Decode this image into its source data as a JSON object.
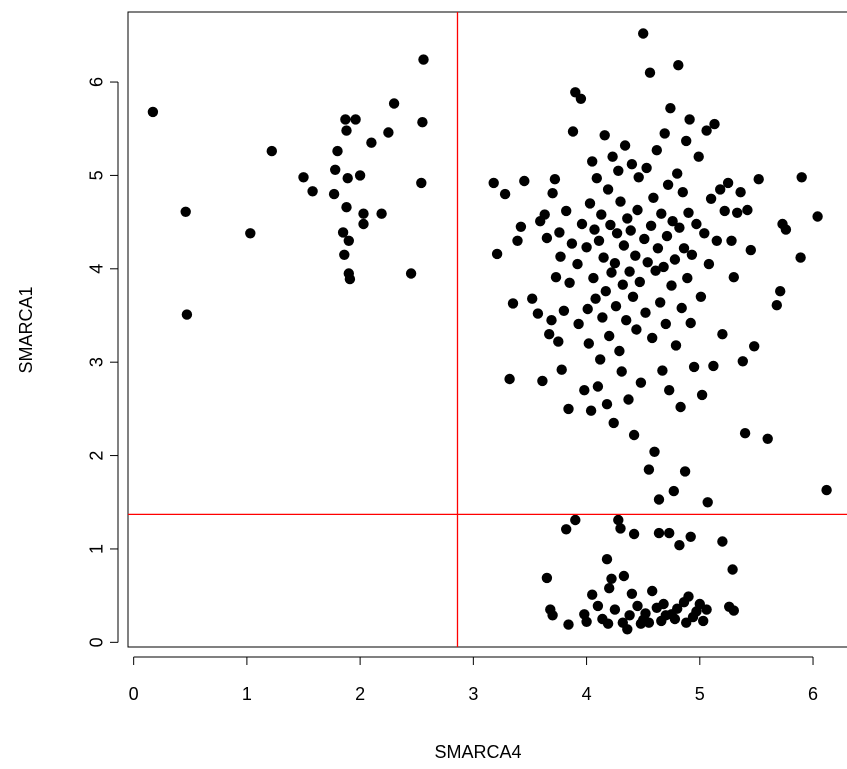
{
  "chart_data": {
    "type": "scatter",
    "xlabel": "SMARCA4",
    "ylabel": "SMARCA1",
    "xlim": [
      -0.05,
      6.3
    ],
    "ylim": [
      -0.05,
      6.75
    ],
    "x_ticks": [
      0,
      1,
      2,
      3,
      4,
      5,
      6
    ],
    "y_ticks": [
      0,
      1,
      2,
      3,
      4,
      5,
      6
    ],
    "grid": false,
    "point_color": "#000000",
    "reference_lines": {
      "vertical_x": 2.86,
      "horizontal_y": 1.37,
      "color": "#ff0000"
    },
    "points": [
      [
        0.17,
        5.68
      ],
      [
        0.46,
        4.61
      ],
      [
        0.47,
        3.51
      ],
      [
        1.03,
        4.38
      ],
      [
        1.22,
        5.26
      ],
      [
        1.5,
        4.98
      ],
      [
        1.58,
        4.83
      ],
      [
        1.77,
        4.8
      ],
      [
        1.78,
        5.06
      ],
      [
        1.8,
        5.26
      ],
      [
        1.85,
        4.39
      ],
      [
        1.86,
        4.15
      ],
      [
        1.87,
        5.6
      ],
      [
        1.88,
        5.48
      ],
      [
        1.88,
        4.66
      ],
      [
        1.89,
        4.97
      ],
      [
        1.9,
        3.95
      ],
      [
        1.9,
        4.3
      ],
      [
        1.91,
        3.89
      ],
      [
        1.96,
        5.6
      ],
      [
        2.0,
        5.0
      ],
      [
        2.03,
        4.48
      ],
      [
        2.03,
        4.59
      ],
      [
        2.1,
        5.35
      ],
      [
        2.19,
        4.59
      ],
      [
        2.25,
        5.46
      ],
      [
        2.3,
        5.77
      ],
      [
        2.45,
        3.95
      ],
      [
        2.54,
        4.92
      ],
      [
        2.55,
        5.57
      ],
      [
        2.56,
        6.24
      ],
      [
        3.18,
        4.92
      ],
      [
        3.21,
        4.16
      ],
      [
        3.28,
        4.8
      ],
      [
        3.32,
        2.82
      ],
      [
        3.35,
        3.63
      ],
      [
        3.39,
        4.3
      ],
      [
        3.42,
        4.45
      ],
      [
        3.45,
        4.94
      ],
      [
        3.52,
        3.68
      ],
      [
        3.57,
        3.52
      ],
      [
        3.59,
        4.51
      ],
      [
        3.61,
        2.8
      ],
      [
        3.63,
        4.58
      ],
      [
        3.65,
        4.33
      ],
      [
        3.67,
        3.3
      ],
      [
        3.69,
        3.45
      ],
      [
        3.7,
        4.81
      ],
      [
        3.72,
        4.96
      ],
      [
        3.73,
        3.91
      ],
      [
        3.75,
        3.22
      ],
      [
        3.76,
        4.39
      ],
      [
        3.77,
        4.13
      ],
      [
        3.78,
        2.92
      ],
      [
        3.8,
        3.55
      ],
      [
        3.82,
        4.62
      ],
      [
        3.84,
        2.5
      ],
      [
        3.85,
        3.85
      ],
      [
        3.87,
        4.27
      ],
      [
        3.88,
        5.47
      ],
      [
        3.9,
        5.89
      ],
      [
        3.92,
        4.05
      ],
      [
        3.93,
        3.41
      ],
      [
        3.95,
        5.82
      ],
      [
        3.96,
        4.48
      ],
      [
        3.98,
        2.7
      ],
      [
        4.0,
        4.23
      ],
      [
        4.01,
        3.57
      ],
      [
        4.02,
        3.2
      ],
      [
        4.03,
        4.7
      ],
      [
        4.04,
        2.48
      ],
      [
        4.05,
        5.15
      ],
      [
        4.06,
        3.9
      ],
      [
        4.07,
        4.42
      ],
      [
        4.08,
        3.68
      ],
      [
        4.09,
        4.97
      ],
      [
        4.1,
        2.74
      ],
      [
        4.11,
        4.3
      ],
      [
        4.12,
        3.03
      ],
      [
        4.13,
        4.58
      ],
      [
        4.14,
        3.48
      ],
      [
        4.15,
        4.12
      ],
      [
        4.16,
        5.43
      ],
      [
        4.17,
        3.76
      ],
      [
        4.18,
        2.55
      ],
      [
        4.19,
        4.85
      ],
      [
        4.2,
        3.28
      ],
      [
        4.21,
        4.47
      ],
      [
        4.22,
        3.96
      ],
      [
        4.23,
        5.2
      ],
      [
        4.24,
        2.35
      ],
      [
        4.25,
        4.06
      ],
      [
        4.26,
        3.6
      ],
      [
        4.27,
        4.38
      ],
      [
        4.28,
        5.05
      ],
      [
        4.29,
        3.12
      ],
      [
        4.3,
        4.72
      ],
      [
        4.31,
        2.9
      ],
      [
        4.32,
        3.83
      ],
      [
        4.33,
        4.25
      ],
      [
        4.34,
        5.32
      ],
      [
        4.35,
        3.45
      ],
      [
        4.36,
        4.54
      ],
      [
        4.37,
        2.6
      ],
      [
        4.38,
        3.97
      ],
      [
        4.39,
        4.41
      ],
      [
        4.4,
        5.12
      ],
      [
        4.41,
        3.7
      ],
      [
        4.42,
        2.22
      ],
      [
        4.43,
        4.14
      ],
      [
        4.44,
        3.35
      ],
      [
        4.45,
        4.63
      ],
      [
        4.46,
        4.98
      ],
      [
        4.47,
        3.86
      ],
      [
        4.48,
        2.78
      ],
      [
        4.5,
        6.52
      ],
      [
        4.51,
        4.32
      ],
      [
        4.52,
        3.53
      ],
      [
        4.53,
        5.08
      ],
      [
        4.54,
        4.07
      ],
      [
        4.55,
        1.85
      ],
      [
        4.56,
        6.1
      ],
      [
        4.57,
        4.46
      ],
      [
        4.58,
        3.26
      ],
      [
        4.59,
        4.76
      ],
      [
        4.6,
        2.04
      ],
      [
        4.61,
        3.98
      ],
      [
        4.62,
        5.27
      ],
      [
        4.63,
        4.22
      ],
      [
        4.64,
        1.53
      ],
      [
        4.65,
        3.64
      ],
      [
        4.66,
        4.59
      ],
      [
        4.67,
        2.91
      ],
      [
        4.68,
        4.02
      ],
      [
        4.69,
        5.45
      ],
      [
        4.7,
        3.41
      ],
      [
        4.71,
        4.35
      ],
      [
        4.72,
        4.9
      ],
      [
        4.73,
        2.7
      ],
      [
        4.74,
        5.72
      ],
      [
        4.75,
        3.82
      ],
      [
        4.76,
        4.51
      ],
      [
        4.77,
        1.62
      ],
      [
        4.78,
        4.1
      ],
      [
        4.79,
        3.18
      ],
      [
        4.8,
        5.02
      ],
      [
        4.81,
        6.18
      ],
      [
        4.82,
        4.44
      ],
      [
        4.83,
        2.52
      ],
      [
        4.84,
        3.58
      ],
      [
        4.85,
        4.82
      ],
      [
        4.86,
        4.22
      ],
      [
        4.87,
        1.83
      ],
      [
        4.88,
        5.37
      ],
      [
        4.89,
        3.9
      ],
      [
        4.9,
        4.6
      ],
      [
        4.91,
        5.6
      ],
      [
        4.92,
        3.42
      ],
      [
        4.93,
        4.15
      ],
      [
        4.95,
        2.95
      ],
      [
        4.97,
        4.48
      ],
      [
        4.99,
        5.2
      ],
      [
        5.01,
        3.7
      ],
      [
        5.02,
        2.65
      ],
      [
        5.04,
        4.38
      ],
      [
        5.06,
        5.48
      ],
      [
        5.07,
        1.5
      ],
      [
        5.08,
        4.05
      ],
      [
        5.1,
        4.75
      ],
      [
        5.12,
        2.96
      ],
      [
        5.13,
        5.55
      ],
      [
        5.15,
        4.3
      ],
      [
        5.18,
        4.85
      ],
      [
        5.2,
        3.3
      ],
      [
        5.22,
        4.62
      ],
      [
        5.25,
        4.92
      ],
      [
        5.28,
        4.3
      ],
      [
        5.3,
        3.91
      ],
      [
        5.33,
        4.6
      ],
      [
        5.36,
        4.82
      ],
      [
        5.38,
        3.01
      ],
      [
        5.4,
        2.24
      ],
      [
        5.42,
        4.63
      ],
      [
        5.45,
        4.2
      ],
      [
        5.48,
        3.17
      ],
      [
        5.52,
        4.96
      ],
      [
        5.6,
        2.18
      ],
      [
        5.68,
        3.61
      ],
      [
        5.71,
        3.76
      ],
      [
        5.73,
        4.48
      ],
      [
        5.76,
        4.42
      ],
      [
        5.89,
        4.12
      ],
      [
        5.9,
        4.98
      ],
      [
        6.04,
        4.56
      ],
      [
        6.12,
        1.63
      ],
      [
        3.65,
        0.69
      ],
      [
        3.68,
        0.35
      ],
      [
        3.7,
        0.29
      ],
      [
        3.82,
        1.21
      ],
      [
        3.84,
        0.19
      ],
      [
        3.9,
        1.31
      ],
      [
        3.98,
        0.3
      ],
      [
        4.0,
        0.22
      ],
      [
        4.05,
        0.51
      ],
      [
        4.1,
        0.39
      ],
      [
        4.14,
        0.25
      ],
      [
        4.18,
        0.89
      ],
      [
        4.19,
        0.2
      ],
      [
        4.2,
        0.58
      ],
      [
        4.22,
        0.68
      ],
      [
        4.25,
        0.35
      ],
      [
        4.28,
        1.31
      ],
      [
        4.3,
        1.22
      ],
      [
        4.32,
        0.21
      ],
      [
        4.33,
        0.71
      ],
      [
        4.36,
        0.14
      ],
      [
        4.38,
        0.29
      ],
      [
        4.4,
        0.52
      ],
      [
        4.42,
        1.16
      ],
      [
        4.45,
        0.39
      ],
      [
        4.48,
        0.2
      ],
      [
        4.5,
        0.24
      ],
      [
        4.52,
        0.31
      ],
      [
        4.55,
        0.21
      ],
      [
        4.58,
        0.55
      ],
      [
        4.62,
        0.37
      ],
      [
        4.64,
        1.17
      ],
      [
        4.66,
        0.23
      ],
      [
        4.68,
        0.41
      ],
      [
        4.7,
        0.29
      ],
      [
        4.73,
        1.17
      ],
      [
        4.75,
        0.3
      ],
      [
        4.78,
        0.25
      ],
      [
        4.8,
        0.36
      ],
      [
        4.82,
        1.04
      ],
      [
        4.86,
        0.43
      ],
      [
        4.88,
        0.21
      ],
      [
        4.9,
        0.49
      ],
      [
        4.92,
        1.13
      ],
      [
        4.94,
        0.27
      ],
      [
        4.97,
        0.33
      ],
      [
        5.0,
        0.41
      ],
      [
        5.03,
        0.23
      ],
      [
        5.06,
        0.35
      ],
      [
        5.2,
        1.08
      ],
      [
        5.26,
        0.38
      ],
      [
        5.29,
        0.78
      ],
      [
        5.3,
        0.34
      ]
    ]
  }
}
